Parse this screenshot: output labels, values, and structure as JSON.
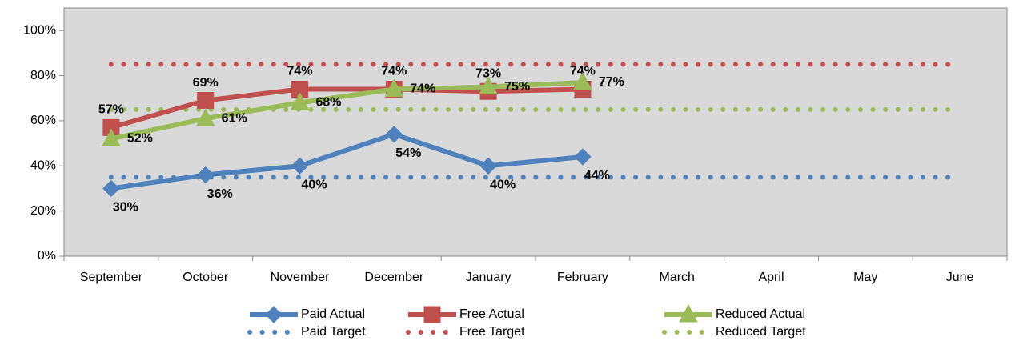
{
  "chart_data": {
    "type": "line",
    "categories": [
      "September",
      "October",
      "November",
      "December",
      "January",
      "February",
      "March",
      "April",
      "May",
      "June"
    ],
    "ylim": [
      0,
      110
    ],
    "yticks": [
      {
        "value": 0,
        "label": "0%"
      },
      {
        "value": 20,
        "label": "20%"
      },
      {
        "value": 40,
        "label": "40%"
      },
      {
        "value": 60,
        "label": "60%"
      },
      {
        "value": 80,
        "label": "80%"
      },
      {
        "value": 100,
        "label": "100%"
      }
    ],
    "grid": false,
    "legend": "bottom",
    "series": [
      {
        "name": "Paid Actual",
        "color": "#4f81bd",
        "style": "solid",
        "marker": "diamond",
        "values": [
          30,
          36,
          40,
          54,
          40,
          44,
          null,
          null,
          null,
          null
        ],
        "value_labels": [
          "30%",
          "36%",
          "40%",
          "54%",
          "40%",
          "44%",
          null,
          null,
          null,
          null
        ]
      },
      {
        "name": "Free Actual",
        "color": "#c0504d",
        "style": "solid",
        "marker": "square",
        "values": [
          57,
          69,
          74,
          74,
          73,
          74,
          null,
          null,
          null,
          null
        ],
        "value_labels": [
          "57%",
          "69%",
          "74%",
          "74%",
          "73%",
          "74%",
          null,
          null,
          null,
          null
        ]
      },
      {
        "name": "Reduced Actual",
        "color": "#9bbb59",
        "style": "solid",
        "marker": "triangle",
        "values": [
          52,
          61,
          68,
          74,
          75,
          77,
          null,
          null,
          null,
          null
        ],
        "value_labels": [
          "52%",
          "61%",
          "68%",
          "74%",
          "75%",
          "77%",
          null,
          null,
          null,
          null
        ]
      },
      {
        "name": "Paid Target",
        "color": "#4f81bd",
        "style": "dotted",
        "values": [
          35,
          35,
          35,
          35,
          35,
          35,
          35,
          35,
          35,
          35
        ]
      },
      {
        "name": "Free Target",
        "color": "#c0504d",
        "style": "dotted",
        "values": [
          85,
          85,
          85,
          85,
          85,
          85,
          85,
          85,
          85,
          85
        ]
      },
      {
        "name": "Reduced Target",
        "color": "#9bbb59",
        "style": "dotted",
        "values": [
          65,
          65,
          65,
          65,
          65,
          65,
          65,
          65,
          65,
          65
        ]
      }
    ]
  }
}
